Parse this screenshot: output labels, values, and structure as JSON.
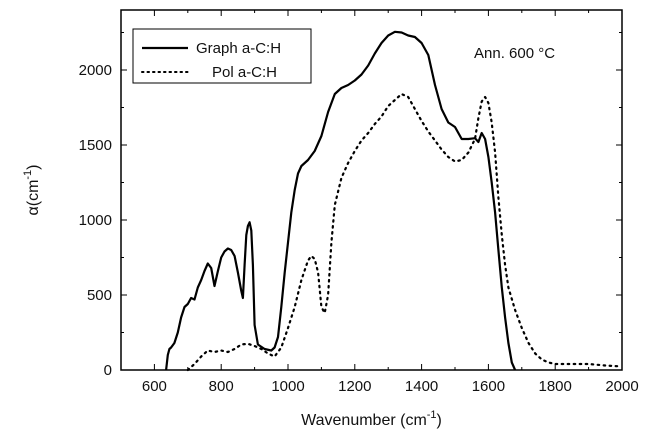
{
  "chart_data": {
    "type": "line",
    "xlabel": "Wavenumber (cm",
    "xlabel_sup": "-1",
    "xlabel_end": ")",
    "ylabel": "α(cm",
    "ylabel_sup": "-1",
    "ylabel_end": ")",
    "xlim": [
      500,
      2000
    ],
    "ylim": [
      0,
      2400
    ],
    "x_ticks": [
      600,
      800,
      1000,
      1200,
      1400,
      1600,
      1800,
      2000
    ],
    "y_ticks": [
      0,
      500,
      1000,
      1500,
      2000
    ],
    "annotation": "Ann. 600 °C",
    "legend_position": "top-left",
    "series": [
      {
        "name": "Graph a-C:H",
        "style": "solid",
        "color": "#000000",
        "points": [
          [
            635,
            0
          ],
          [
            640,
            100
          ],
          [
            645,
            140
          ],
          [
            650,
            150
          ],
          [
            660,
            180
          ],
          [
            670,
            250
          ],
          [
            680,
            350
          ],
          [
            690,
            420
          ],
          [
            700,
            440
          ],
          [
            710,
            480
          ],
          [
            720,
            470
          ],
          [
            730,
            550
          ],
          [
            740,
            600
          ],
          [
            750,
            660
          ],
          [
            760,
            710
          ],
          [
            770,
            680
          ],
          [
            780,
            560
          ],
          [
            790,
            660
          ],
          [
            800,
            750
          ],
          [
            810,
            790
          ],
          [
            820,
            810
          ],
          [
            830,
            800
          ],
          [
            840,
            760
          ],
          [
            850,
            650
          ],
          [
            860,
            530
          ],
          [
            865,
            480
          ],
          [
            870,
            700
          ],
          [
            875,
            900
          ],
          [
            880,
            960
          ],
          [
            885,
            985
          ],
          [
            890,
            930
          ],
          [
            895,
            700
          ],
          [
            900,
            300
          ],
          [
            910,
            170
          ],
          [
            930,
            140
          ],
          [
            950,
            130
          ],
          [
            960,
            150
          ],
          [
            970,
            220
          ],
          [
            980,
            420
          ],
          [
            990,
            650
          ],
          [
            1000,
            850
          ],
          [
            1010,
            1050
          ],
          [
            1020,
            1200
          ],
          [
            1030,
            1310
          ],
          [
            1040,
            1360
          ],
          [
            1060,
            1400
          ],
          [
            1080,
            1460
          ],
          [
            1100,
            1560
          ],
          [
            1120,
            1720
          ],
          [
            1140,
            1840
          ],
          [
            1160,
            1880
          ],
          [
            1180,
            1900
          ],
          [
            1200,
            1930
          ],
          [
            1220,
            1970
          ],
          [
            1240,
            2030
          ],
          [
            1260,
            2110
          ],
          [
            1280,
            2180
          ],
          [
            1300,
            2230
          ],
          [
            1320,
            2255
          ],
          [
            1340,
            2250
          ],
          [
            1360,
            2230
          ],
          [
            1380,
            2220
          ],
          [
            1400,
            2180
          ],
          [
            1420,
            2100
          ],
          [
            1440,
            1900
          ],
          [
            1460,
            1740
          ],
          [
            1480,
            1650
          ],
          [
            1500,
            1620
          ],
          [
            1520,
            1540
          ],
          [
            1540,
            1540
          ],
          [
            1560,
            1545
          ],
          [
            1570,
            1520
          ],
          [
            1580,
            1580
          ],
          [
            1590,
            1540
          ],
          [
            1600,
            1420
          ],
          [
            1610,
            1250
          ],
          [
            1620,
            1050
          ],
          [
            1630,
            800
          ],
          [
            1640,
            550
          ],
          [
            1650,
            350
          ],
          [
            1660,
            180
          ],
          [
            1670,
            50
          ],
          [
            1680,
            0
          ]
        ]
      },
      {
        "name": "Pol a-C:H",
        "style": "dotted",
        "color": "#000000",
        "points": [
          [
            700,
            0
          ],
          [
            720,
            40
          ],
          [
            740,
            90
          ],
          [
            760,
            130
          ],
          [
            780,
            120
          ],
          [
            800,
            130
          ],
          [
            820,
            120
          ],
          [
            840,
            140
          ],
          [
            860,
            170
          ],
          [
            880,
            175
          ],
          [
            900,
            160
          ],
          [
            920,
            140
          ],
          [
            940,
            110
          ],
          [
            960,
            90
          ],
          [
            980,
            150
          ],
          [
            1000,
            280
          ],
          [
            1020,
            420
          ],
          [
            1040,
            600
          ],
          [
            1060,
            730
          ],
          [
            1070,
            760
          ],
          [
            1080,
            740
          ],
          [
            1090,
            650
          ],
          [
            1100,
            420
          ],
          [
            1110,
            380
          ],
          [
            1120,
            500
          ],
          [
            1130,
            850
          ],
          [
            1140,
            1100
          ],
          [
            1160,
            1280
          ],
          [
            1180,
            1380
          ],
          [
            1200,
            1460
          ],
          [
            1220,
            1530
          ],
          [
            1240,
            1580
          ],
          [
            1260,
            1640
          ],
          [
            1280,
            1690
          ],
          [
            1300,
            1760
          ],
          [
            1320,
            1800
          ],
          [
            1340,
            1840
          ],
          [
            1360,
            1820
          ],
          [
            1380,
            1740
          ],
          [
            1400,
            1660
          ],
          [
            1420,
            1590
          ],
          [
            1440,
            1530
          ],
          [
            1460,
            1470
          ],
          [
            1480,
            1420
          ],
          [
            1500,
            1390
          ],
          [
            1520,
            1400
          ],
          [
            1540,
            1450
          ],
          [
            1560,
            1540
          ],
          [
            1570,
            1680
          ],
          [
            1580,
            1790
          ],
          [
            1590,
            1820
          ],
          [
            1600,
            1780
          ],
          [
            1610,
            1650
          ],
          [
            1620,
            1450
          ],
          [
            1630,
            1150
          ],
          [
            1640,
            900
          ],
          [
            1650,
            700
          ],
          [
            1660,
            550
          ],
          [
            1680,
            400
          ],
          [
            1700,
            280
          ],
          [
            1720,
            180
          ],
          [
            1740,
            110
          ],
          [
            1760,
            70
          ],
          [
            1780,
            50
          ],
          [
            1800,
            40
          ],
          [
            1850,
            40
          ],
          [
            1900,
            40
          ],
          [
            1950,
            30
          ],
          [
            1990,
            25
          ]
        ]
      }
    ]
  }
}
